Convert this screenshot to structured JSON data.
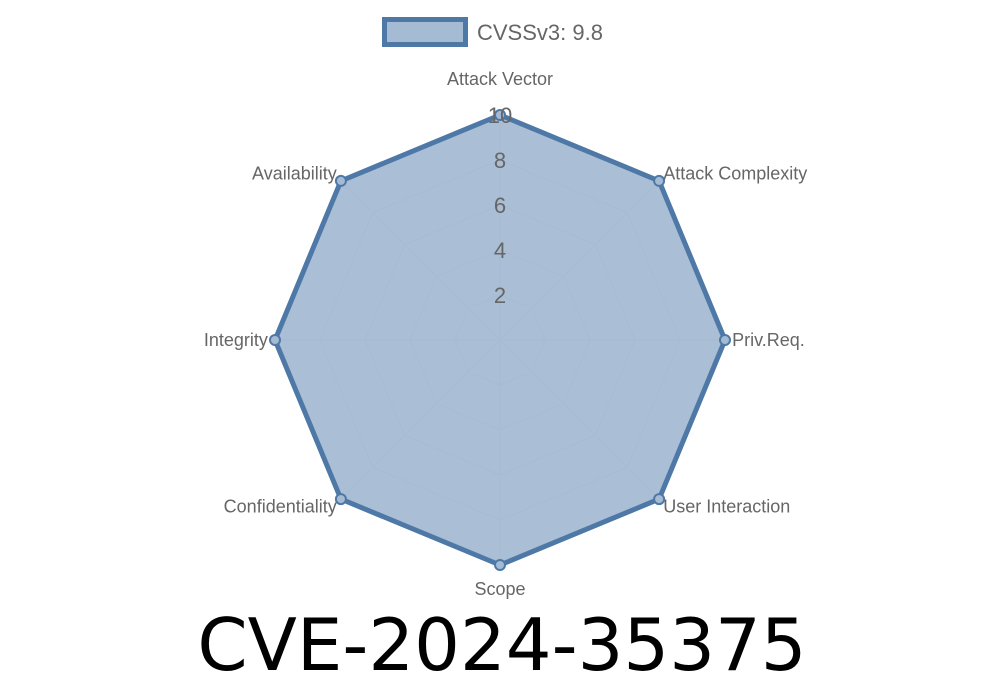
{
  "chart_data": {
    "type": "radar",
    "title": "CVE-2024-35375",
    "axes": [
      "Attack Vector",
      "Attack Complexity",
      "Priv.Req.",
      "User Interaction",
      "Scope",
      "Confidentiality",
      "Integrity",
      "Availability"
    ],
    "series": [
      {
        "name": "CVSSv3: 9.8",
        "values": [
          10,
          10,
          10,
          10,
          10,
          10,
          10,
          10
        ],
        "color": "#4e79a7",
        "fill": "#a5bad3"
      }
    ],
    "rlim": [
      0,
      10
    ],
    "ticks": [
      "2",
      "4",
      "6",
      "8",
      "10"
    ],
    "grid": true,
    "legend": "top"
  }
}
